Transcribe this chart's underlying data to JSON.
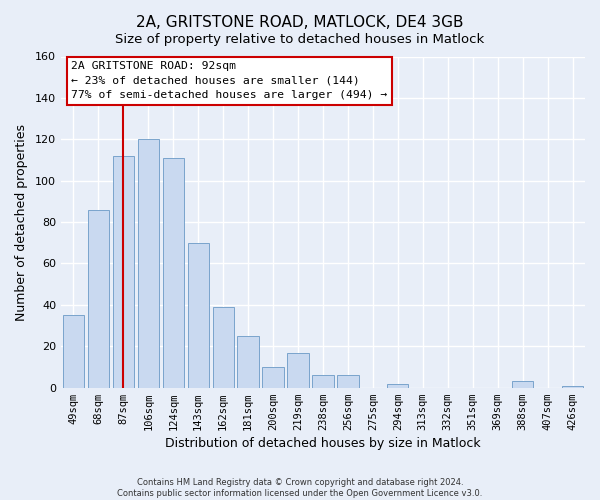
{
  "title": "2A, GRITSTONE ROAD, MATLOCK, DE4 3GB",
  "subtitle": "Size of property relative to detached houses in Matlock",
  "xlabel": "Distribution of detached houses by size in Matlock",
  "ylabel": "Number of detached properties",
  "bar_labels": [
    "49sqm",
    "68sqm",
    "87sqm",
    "106sqm",
    "124sqm",
    "143sqm",
    "162sqm",
    "181sqm",
    "200sqm",
    "219sqm",
    "238sqm",
    "256sqm",
    "275sqm",
    "294sqm",
    "313sqm",
    "332sqm",
    "351sqm",
    "369sqm",
    "388sqm",
    "407sqm",
    "426sqm"
  ],
  "bar_values": [
    35,
    86,
    112,
    120,
    111,
    70,
    39,
    25,
    10,
    17,
    6,
    6,
    0,
    2,
    0,
    0,
    0,
    0,
    3,
    0,
    1
  ],
  "bar_color": "#c9d9f0",
  "bar_edge_color": "#7aa4cc",
  "vline_x": 2,
  "vline_color": "#cc0000",
  "ylim": [
    0,
    160
  ],
  "yticks": [
    0,
    20,
    40,
    60,
    80,
    100,
    120,
    140,
    160
  ],
  "annotation_title": "2A GRITSTONE ROAD: 92sqm",
  "annotation_line1": "← 23% of detached houses are smaller (144)",
  "annotation_line2": "77% of semi-detached houses are larger (494) →",
  "footnote1": "Contains HM Land Registry data © Crown copyright and database right 2024.",
  "footnote2": "Contains public sector information licensed under the Open Government Licence v3.0.",
  "background_color": "#e8eef8",
  "plot_bg_color": "#e8eef8",
  "grid_color": "#ffffff",
  "title_fontsize": 11,
  "tick_fontsize": 7.5
}
